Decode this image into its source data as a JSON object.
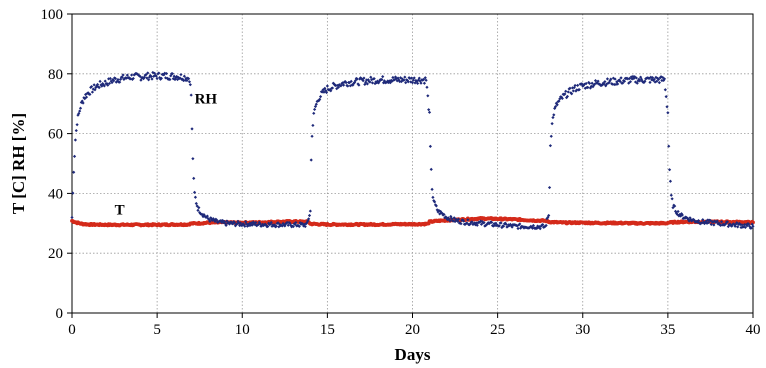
{
  "chart_data": {
    "type": "scatter",
    "title": "",
    "xlabel": "Days",
    "ylabel": "T [C] RH [%]",
    "xlim": [
      0,
      40
    ],
    "ylim": [
      0,
      100
    ],
    "xticks": [
      "0",
      "5",
      "10",
      "15",
      "20",
      "25",
      "30",
      "35",
      "40"
    ],
    "yticks": [
      "0",
      "20",
      "40",
      "60",
      "80",
      "100"
    ],
    "grid": "dotted",
    "legend": "none",
    "annotations": [
      {
        "text": "RH",
        "x": 7.2,
        "y": 70
      },
      {
        "text": "T",
        "x": 2.5,
        "y": 33
      }
    ],
    "series": [
      {
        "name": "RH",
        "color": "#1f2a7a",
        "marker": "diamond",
        "x": [
          0.0,
          0.1,
          0.2,
          0.3,
          0.5,
          0.7,
          1.0,
          1.5,
          2.0,
          2.5,
          3.0,
          3.5,
          4.0,
          4.5,
          5.0,
          5.5,
          6.0,
          6.5,
          6.9,
          7.0,
          7.05,
          7.1,
          7.15,
          7.2,
          7.3,
          7.4,
          7.6,
          7.8,
          8.0,
          8.5,
          9.0,
          10.0,
          11.0,
          12.0,
          13.0,
          13.8,
          14.0,
          14.05,
          14.1,
          14.2,
          14.3,
          14.5,
          14.8,
          15.0,
          15.5,
          16.0,
          17.0,
          18.0,
          19.0,
          20.0,
          20.8,
          21.0,
          21.05,
          21.1,
          21.15,
          21.2,
          21.3,
          21.5,
          21.8,
          22.0,
          22.5,
          23.0,
          24.0,
          25.0,
          26.0,
          27.0,
          27.8,
          28.0,
          28.05,
          28.1,
          28.2,
          28.3,
          28.5,
          28.8,
          29.0,
          29.5,
          30.0,
          31.0,
          32.0,
          33.0,
          34.0,
          34.8,
          35.0,
          35.05,
          35.1,
          35.15,
          35.2,
          35.3,
          35.5,
          35.8,
          36.0,
          36.5,
          37.0,
          38.0,
          39.0,
          40.0
        ],
        "y": [
          32,
          48,
          58,
          64,
          69,
          72,
          74,
          76,
          77,
          78,
          78.5,
          79,
          79,
          79.2,
          79.3,
          79.3,
          79.2,
          79,
          78.5,
          73,
          61,
          52,
          44,
          40,
          37,
          35,
          33.5,
          32.5,
          31.5,
          30.5,
          30,
          29.8,
          29.7,
          29.6,
          29.5,
          29.5,
          34,
          51,
          60,
          66,
          69,
          72,
          74,
          75,
          76,
          77,
          77.5,
          78,
          78,
          78,
          78,
          66,
          55,
          47,
          42,
          39,
          36.5,
          34,
          33,
          32,
          31,
          30.5,
          30,
          29.5,
          29,
          29,
          28.8,
          33,
          42,
          57,
          63,
          67,
          70,
          72,
          73,
          75,
          76,
          77,
          77.5,
          78,
          78,
          78,
          67,
          56,
          48,
          43,
          39,
          36,
          34,
          32.5,
          32,
          31,
          30.5,
          30,
          29.5,
          29
        ]
      },
      {
        "name": "T",
        "color": "#d42a1a",
        "marker": "circle",
        "x": [
          0.0,
          0.3,
          0.6,
          1.0,
          2.0,
          3.0,
          4.0,
          5.0,
          6.0,
          6.8,
          7.0,
          7.5,
          8.0,
          9.0,
          10.0,
          11.0,
          12.0,
          13.0,
          13.9,
          14.0,
          14.5,
          15.0,
          16.0,
          17.0,
          18.0,
          19.0,
          20.0,
          20.9,
          21.0,
          21.5,
          22.0,
          23.0,
          24.0,
          25.0,
          26.0,
          27.0,
          27.9,
          28.0,
          28.5,
          29.0,
          30.0,
          31.0,
          32.0,
          33.0,
          34.0,
          34.9,
          35.0,
          35.5,
          36.0,
          37.0,
          38.0,
          39.0,
          40.0
        ],
        "y": [
          30.8,
          30.2,
          29.8,
          29.6,
          29.5,
          29.5,
          29.5,
          29.5,
          29.6,
          29.6,
          29.9,
          30.0,
          30.2,
          30.3,
          30.2,
          30.3,
          30.5,
          30.6,
          30.5,
          29.8,
          29.7,
          29.6,
          29.6,
          29.6,
          29.6,
          29.7,
          29.7,
          29.8,
          30.5,
          30.8,
          31.0,
          31.3,
          31.6,
          31.5,
          31.3,
          31.0,
          30.8,
          30.5,
          30.3,
          30.2,
          30.2,
          30.1,
          30.1,
          30.0,
          30.0,
          30.0,
          30.2,
          30.4,
          30.5,
          30.5,
          30.5,
          30.4,
          30.3
        ]
      }
    ]
  }
}
